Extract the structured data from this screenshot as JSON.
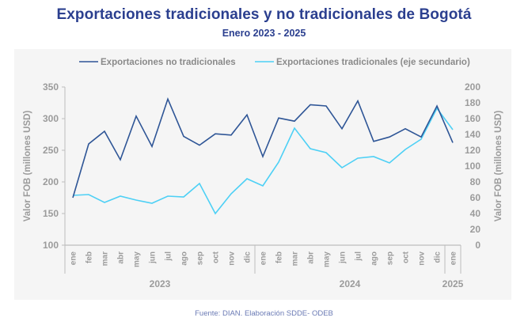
{
  "chart_data": {
    "type": "line",
    "title": "Exportaciones tradicionales y no tradicionales de Bogotá",
    "subtitle": "Enero 2023 - 2025",
    "source": "Fuente: DIAN. Elaboración SDDE- ODEB",
    "categories": [
      "ene",
      "feb",
      "mar",
      "abr",
      "may",
      "jun",
      "jul",
      "ago",
      "sep",
      "oct",
      "nov",
      "dic",
      "ene",
      "feb",
      "mar",
      "abr",
      "may",
      "jun",
      "jul",
      "ago",
      "sep",
      "oct",
      "nov",
      "dic",
      "ene"
    ],
    "year_groups": [
      {
        "label": "2023",
        "start": 0,
        "end": 11
      },
      {
        "label": "2024",
        "start": 12,
        "end": 23
      },
      {
        "label": "2025",
        "start": 24,
        "end": 24
      }
    ],
    "series": [
      {
        "name": "Exportaciones no tradicionales",
        "axis": "primary",
        "color": "#2e5596",
        "values": [
          175,
          260,
          280,
          235,
          304,
          256,
          331,
          272,
          258,
          276,
          274,
          306,
          240,
          301,
          296,
          322,
          320,
          284,
          328,
          264,
          271,
          284,
          271,
          320,
          262
        ]
      },
      {
        "name": "Exportaciones tradicionales (eje secundario)",
        "axis": "secondary",
        "color": "#4dd0f5",
        "values": [
          63,
          64,
          54,
          62,
          57,
          53,
          62,
          61,
          78,
          40,
          65,
          84,
          75,
          105,
          148,
          122,
          117,
          98,
          110,
          112,
          104,
          121,
          134,
          173,
          146
        ]
      }
    ],
    "ylabel": "Valor FOB (millones USD)",
    "y2label": "Valor FOB (millones USD)",
    "ylim": [
      100,
      350
    ],
    "yticks": [
      100,
      150,
      200,
      250,
      300,
      350
    ],
    "y2lim": [
      0,
      200
    ],
    "y2ticks": [
      0,
      20,
      40,
      60,
      80,
      100,
      120,
      140,
      160,
      180,
      200
    ],
    "grid": false,
    "legend_position": "top-center"
  }
}
